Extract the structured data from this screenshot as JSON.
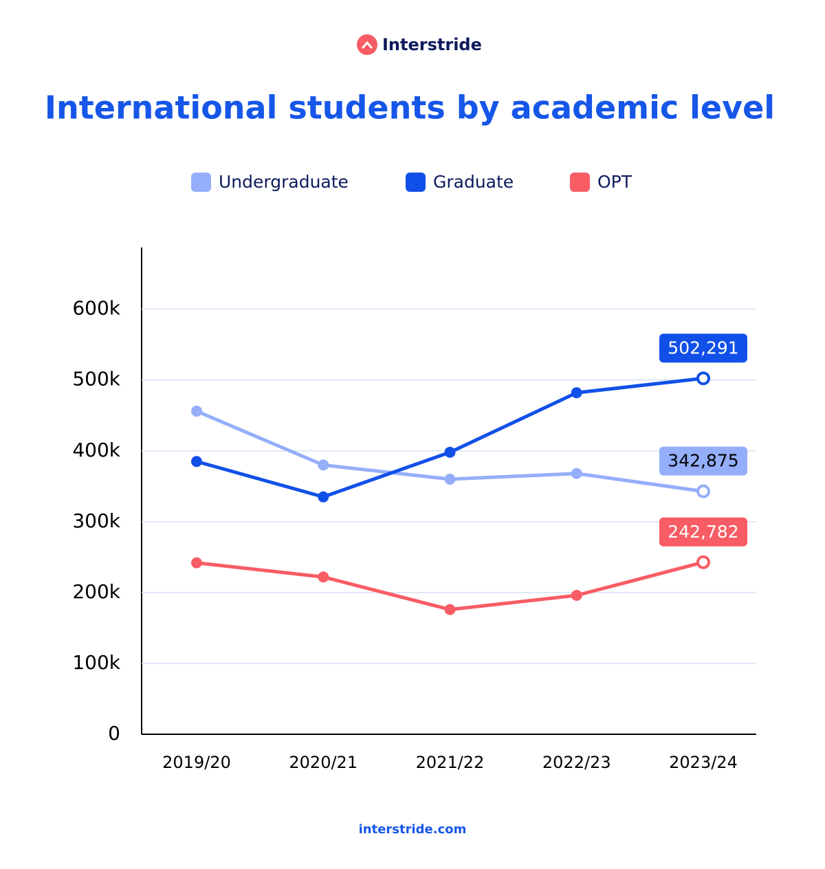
{
  "brand": "Interstride",
  "footer": "interstride.com",
  "chart_data": {
    "type": "line",
    "title": "International students by academic level",
    "categories": [
      "2019/20",
      "2020/21",
      "2021/22",
      "2022/23",
      "2023/24"
    ],
    "series": [
      {
        "name": "Undergraduate",
        "color": "#94aefa",
        "values": [
          456000,
          380000,
          360000,
          368000,
          342875
        ],
        "value_labels": [
          null,
          null,
          null,
          null,
          "342,875"
        ]
      },
      {
        "name": "Graduate",
        "color": "#1150e8",
        "values": [
          385000,
          335000,
          398000,
          482000,
          502291
        ],
        "value_labels": [
          null,
          null,
          null,
          null,
          "502,291"
        ]
      },
      {
        "name": "OPT",
        "color": "#f85c64",
        "values": [
          242000,
          222000,
          176000,
          196000,
          242782
        ],
        "value_labels": [
          null,
          null,
          null,
          null,
          "242,782"
        ]
      }
    ],
    "ylim": [
      0,
      687000
    ],
    "yticks": [
      0,
      {
        "value": 100000,
        "label": "100k"
      },
      {
        "value": 200000,
        "label": "200k"
      },
      {
        "value": 300000,
        "label": "300k"
      },
      {
        "value": 400000,
        "label": "400k"
      },
      {
        "value": 500000,
        "label": "500k"
      },
      {
        "value": 600000,
        "label": "600k"
      }
    ],
    "grid": true
  }
}
